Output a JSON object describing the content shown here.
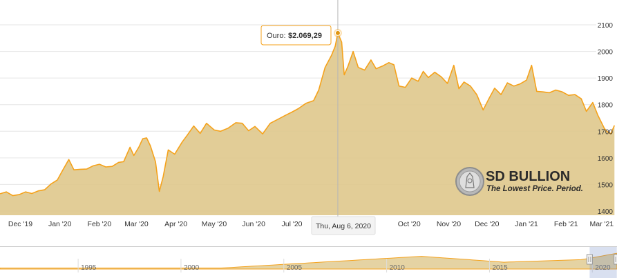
{
  "chart_data": {
    "type": "area",
    "series": [
      {
        "values": [
          [
            "2019-11-15",
            1465
          ],
          [
            "2019-11-20",
            1472
          ],
          [
            "2019-11-25",
            1458
          ],
          [
            "2019-11-30",
            1462
          ],
          [
            "2019-12-05",
            1472
          ],
          [
            "2019-12-10",
            1466
          ],
          [
            "2019-12-15",
            1476
          ],
          [
            "2019-12-20",
            1480
          ],
          [
            "2019-12-25",
            1502
          ],
          [
            "2019-12-30",
            1517
          ],
          [
            "2020-01-03",
            1552
          ],
          [
            "2020-01-08",
            1594
          ],
          [
            "2020-01-12",
            1555
          ],
          [
            "2020-01-17",
            1557
          ],
          [
            "2020-01-22",
            1558
          ],
          [
            "2020-01-27",
            1570
          ],
          [
            "2020-02-01",
            1576
          ],
          [
            "2020-02-06",
            1566
          ],
          [
            "2020-02-11",
            1568
          ],
          [
            "2020-02-16",
            1583
          ],
          [
            "2020-02-20",
            1586
          ],
          [
            "2020-02-25",
            1640
          ],
          [
            "2020-02-28",
            1609
          ],
          [
            "2020-03-03",
            1641
          ],
          [
            "2020-03-06",
            1672
          ],
          [
            "2020-03-09",
            1675
          ],
          [
            "2020-03-12",
            1645
          ],
          [
            "2020-03-16",
            1585
          ],
          [
            "2020-03-19",
            1474
          ],
          [
            "2020-03-22",
            1530
          ],
          [
            "2020-03-26",
            1630
          ],
          [
            "2020-03-31",
            1614
          ],
          [
            "2020-04-06",
            1660
          ],
          [
            "2020-04-10",
            1686
          ],
          [
            "2020-04-15",
            1720
          ],
          [
            "2020-04-20",
            1692
          ],
          [
            "2020-04-25",
            1730
          ],
          [
            "2020-05-01",
            1705
          ],
          [
            "2020-05-06",
            1700
          ],
          [
            "2020-05-12",
            1712
          ],
          [
            "2020-05-18",
            1732
          ],
          [
            "2020-05-23",
            1730
          ],
          [
            "2020-05-28",
            1702
          ],
          [
            "2020-06-02",
            1718
          ],
          [
            "2020-06-08",
            1690
          ],
          [
            "2020-06-14",
            1730
          ],
          [
            "2020-06-20",
            1745
          ],
          [
            "2020-06-26",
            1760
          ],
          [
            "2020-07-01",
            1772
          ],
          [
            "2020-07-06",
            1785
          ],
          [
            "2020-07-12",
            1805
          ],
          [
            "2020-07-18",
            1815
          ],
          [
            "2020-07-22",
            1855
          ],
          [
            "2020-07-27",
            1940
          ],
          [
            "2020-08-01",
            1985
          ],
          [
            "2020-08-04",
            2020
          ],
          [
            "2020-08-06",
            2069.29
          ],
          [
            "2020-08-09",
            2035
          ],
          [
            "2020-08-11",
            1912
          ],
          [
            "2020-08-14",
            1945
          ],
          [
            "2020-08-18",
            2000
          ],
          [
            "2020-08-22",
            1940
          ],
          [
            "2020-08-27",
            1930
          ],
          [
            "2020-09-01",
            1968
          ],
          [
            "2020-09-05",
            1935
          ],
          [
            "2020-09-10",
            1945
          ],
          [
            "2020-09-15",
            1958
          ],
          [
            "2020-09-19",
            1950
          ],
          [
            "2020-09-23",
            1870
          ],
          [
            "2020-09-28",
            1865
          ],
          [
            "2020-10-03",
            1900
          ],
          [
            "2020-10-08",
            1888
          ],
          [
            "2020-10-12",
            1925
          ],
          [
            "2020-10-16",
            1902
          ],
          [
            "2020-10-21",
            1922
          ],
          [
            "2020-10-26",
            1905
          ],
          [
            "2020-10-31",
            1880
          ],
          [
            "2020-11-05",
            1948
          ],
          [
            "2020-11-09",
            1860
          ],
          [
            "2020-11-13",
            1885
          ],
          [
            "2020-11-18",
            1870
          ],
          [
            "2020-11-23",
            1838
          ],
          [
            "2020-11-28",
            1780
          ],
          [
            "2020-12-02",
            1818
          ],
          [
            "2020-12-07",
            1862
          ],
          [
            "2020-12-12",
            1838
          ],
          [
            "2020-12-17",
            1882
          ],
          [
            "2020-12-22",
            1870
          ],
          [
            "2020-12-27",
            1878
          ],
          [
            "2021-01-01",
            1892
          ],
          [
            "2021-01-05",
            1948
          ],
          [
            "2021-01-09",
            1850
          ],
          [
            "2021-01-14",
            1848
          ],
          [
            "2021-01-19",
            1845
          ],
          [
            "2021-01-24",
            1855
          ],
          [
            "2021-01-29",
            1848
          ],
          [
            "2021-02-03",
            1835
          ],
          [
            "2021-02-08",
            1838
          ],
          [
            "2021-02-13",
            1822
          ],
          [
            "2021-02-17",
            1775
          ],
          [
            "2021-02-22",
            1808
          ],
          [
            "2021-02-26",
            1760
          ],
          [
            "2021-03-03",
            1712
          ],
          [
            "2021-03-05",
            1700
          ],
          [
            "2021-03-08",
            1690
          ],
          [
            "2021-03-11",
            1722
          ]
        ]
      }
    ],
    "y_ticks": [
      "1400",
      "1500",
      "1600",
      "1700",
      "1800",
      "1900",
      "2000",
      "2100"
    ],
    "ylim": [
      1400,
      2100
    ],
    "xlim": [
      "2019-11-15",
      "2021-03-13"
    ],
    "x_ticks": [
      {
        "date": "2019-12-01",
        "label": "Dec '19"
      },
      {
        "date": "2020-01-01",
        "label": "Jan '20"
      },
      {
        "date": "2020-02-01",
        "label": "Feb '20"
      },
      {
        "date": "2020-03-01",
        "label": "Mar '20"
      },
      {
        "date": "2020-04-01",
        "label": "Apr '20"
      },
      {
        "date": "2020-05-01",
        "label": "May '20"
      },
      {
        "date": "2020-06-01",
        "label": "Jun '20"
      },
      {
        "date": "2020-07-01",
        "label": "Jul '20"
      },
      {
        "date": "2020-09-01",
        "label": "'20"
      },
      {
        "date": "2020-10-01",
        "label": "Oct '20"
      },
      {
        "date": "2020-11-01",
        "label": "Nov '20"
      },
      {
        "date": "2020-12-01",
        "label": "Dec '20"
      },
      {
        "date": "2021-01-01",
        "label": "Jan '21"
      },
      {
        "date": "2021-02-01",
        "label": "Feb '21"
      },
      {
        "date": "2021-03-01",
        "label": "Mar '21"
      }
    ],
    "grid": true,
    "colors": {
      "line": "#f5a21b",
      "fill": "#dfc88c",
      "grid": "#e6e6e6",
      "crosshair": "#b5b5b5"
    },
    "tooltip": {
      "series_label": "Ouro:",
      "value_text": "$2.069,29",
      "date": "2020-08-06",
      "date_text": "Thu, Aug 6, 2020"
    },
    "navigator": {
      "ticks": [
        {
          "year": 1995,
          "label": "1995"
        },
        {
          "year": 2000,
          "label": "2000"
        },
        {
          "year": 2005,
          "label": "2005"
        },
        {
          "year": 2010,
          "label": "2010"
        },
        {
          "year": 2015,
          "label": "2015"
        },
        {
          "year": 2020,
          "label": "2020"
        }
      ],
      "range_years": [
        1991.2,
        2021.2
      ],
      "selected_years": [
        2019.87,
        2021.19
      ]
    }
  },
  "logo": {
    "name": "SD BULLION",
    "tagline": "The Lowest Price. Period."
  }
}
